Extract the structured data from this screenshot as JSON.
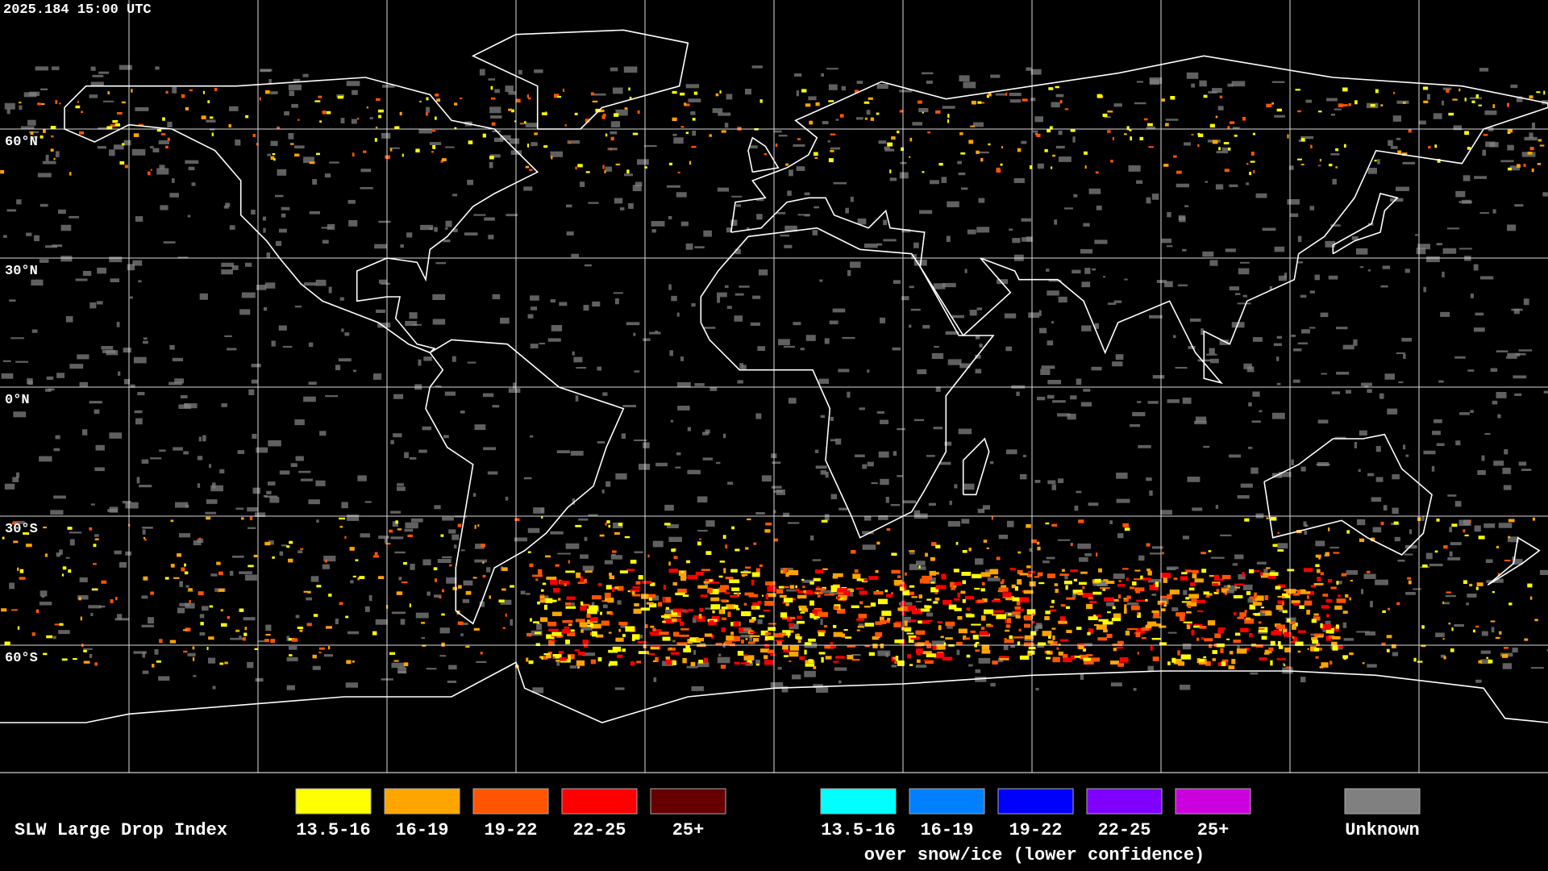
{
  "header": {
    "timestamp": "2025.184 15:00 UTC"
  },
  "map": {
    "latitude_labels": [
      "60°N",
      "30°N",
      "0°N",
      "30°S",
      "60°S"
    ]
  },
  "legend": {
    "title": "SLW Large Drop Index",
    "categories": [
      {
        "label": "13.5-16",
        "color": "#ffff00"
      },
      {
        "label": "16-19",
        "color": "#ffa500"
      },
      {
        "label": "19-22",
        "color": "#ff5500"
      },
      {
        "label": "22-25",
        "color": "#ff0000"
      },
      {
        "label": "25+",
        "color": "#660000"
      }
    ],
    "snow_ice_categories": [
      {
        "label": "13.5-16",
        "color": "#00ffff"
      },
      {
        "label": "16-19",
        "color": "#0080ff"
      },
      {
        "label": "19-22",
        "color": "#0000ff"
      },
      {
        "label": "22-25",
        "color": "#8000ff"
      },
      {
        "label": "25+",
        "color": "#cc00dd"
      }
    ],
    "snow_ice_note": "over snow/ice (lower confidence)",
    "unknown": {
      "label": "Unknown",
      "color": "#808080"
    }
  }
}
